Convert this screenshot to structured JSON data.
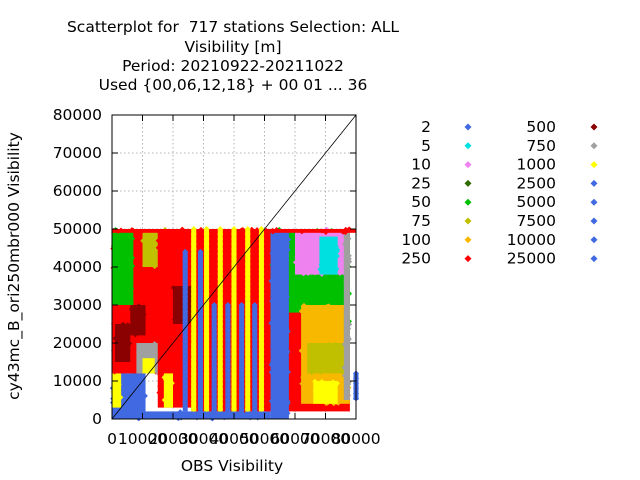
{
  "chart_data": {
    "type": "scatter",
    "title_lines": [
      "Scatterplot for  717 stations Selection: ALL",
      "Visibility [m]",
      "Period: 20210922-20211022",
      "Used {00,06,12,18} + 00 01 ... 36"
    ],
    "xlabel": "OBS Visibility",
    "ylabel": "cy43mc_B_ori250mbr000 Visibility",
    "xlim": [
      0,
      80000
    ],
    "ylim": [
      0,
      80000
    ],
    "x_ticks": [
      "0",
      "10000",
      "20000",
      "30000",
      "40000",
      "50000",
      "60000",
      "70000",
      "80000"
    ],
    "y_ticks": [
      "0",
      "10000",
      "20000",
      "30000",
      "40000",
      "50000",
      "60000",
      "70000",
      "80000"
    ],
    "grid": true,
    "diagonal_line": true,
    "legend_position": "right",
    "legend": [
      {
        "label": "2",
        "color": "#4169e1"
      },
      {
        "label": "5",
        "color": "#00e0e0"
      },
      {
        "label": "10",
        "color": "#ee82ee"
      },
      {
        "label": "25",
        "color": "#2e6b00"
      },
      {
        "label": "50",
        "color": "#00c000"
      },
      {
        "label": "75",
        "color": "#c0c000"
      },
      {
        "label": "100",
        "color": "#f8b800"
      },
      {
        "label": "250",
        "color": "#ff0000"
      },
      {
        "label": "500",
        "color": "#8b0000"
      },
      {
        "label": "750",
        "color": "#a0a0a0"
      },
      {
        "label": "1000",
        "color": "#ffff00"
      },
      {
        "label": "2500",
        "color": "#4169e1"
      },
      {
        "label": "5000",
        "color": "#4169e1"
      },
      {
        "label": "7500",
        "color": "#4169e1"
      },
      {
        "label": "10000",
        "color": "#4169e1"
      },
      {
        "label": "25000",
        "color": "#4169e1"
      }
    ],
    "regions": [
      {
        "color": "#4169e1",
        "x": [
          0,
          52000
        ],
        "y": [
          0,
          2000
        ]
      },
      {
        "color": "#4169e1",
        "x": [
          0,
          11000
        ],
        "y": [
          0,
          12000
        ]
      },
      {
        "color": "#ffff00",
        "x": [
          0,
          3000
        ],
        "y": [
          3000,
          12000
        ]
      },
      {
        "color": "#ff0000",
        "x": [
          0,
          20000
        ],
        "y": [
          12000,
          50000
        ]
      },
      {
        "color": "#00c000",
        "x": [
          0,
          7000
        ],
        "y": [
          30000,
          50000
        ]
      },
      {
        "color": "#8b0000",
        "x": [
          1000,
          6000
        ],
        "y": [
          15000,
          25000
        ]
      },
      {
        "color": "#8b0000",
        "x": [
          6000,
          11000
        ],
        "y": [
          22000,
          30000
        ]
      },
      {
        "color": "#a0a0a0",
        "x": [
          8000,
          16000
        ],
        "y": [
          12000,
          20000
        ]
      },
      {
        "color": "#ffff00",
        "x": [
          10000,
          14000
        ],
        "y": [
          12000,
          16000
        ]
      },
      {
        "color": "#c0c000",
        "x": [
          10000,
          18000
        ],
        "y": [
          40000,
          50000
        ]
      },
      {
        "color": "#ff0000",
        "x": [
          15000,
          26000
        ],
        "y": [
          3000,
          50000
        ]
      },
      {
        "color": "#ffff00",
        "x": [
          17000,
          20000
        ],
        "y": [
          3000,
          12000
        ]
      },
      {
        "color": "#8b0000",
        "x": [
          20000,
          26000
        ],
        "y": [
          25000,
          35000
        ]
      },
      {
        "color": "#ff0000",
        "x": [
          26000,
          40000
        ],
        "y": [
          2000,
          50000
        ]
      },
      {
        "color": "#ff0000",
        "x": [
          40000,
          52000
        ],
        "y": [
          2000,
          50000
        ]
      },
      {
        "color": "#00c000",
        "x": [
          52000,
          78000
        ],
        "y": [
          20000,
          50000
        ]
      },
      {
        "color": "#ff0000",
        "x": [
          52000,
          78000
        ],
        "y": [
          2000,
          20000
        ]
      },
      {
        "color": "#ff0000",
        "x": [
          58000,
          70000
        ],
        "y": [
          10000,
          28000
        ]
      },
      {
        "color": "#f8b800",
        "x": [
          62000,
          78000
        ],
        "y": [
          4000,
          30000
        ]
      },
      {
        "color": "#ffff00",
        "x": [
          66000,
          74000
        ],
        "y": [
          4000,
          10000
        ]
      },
      {
        "color": "#c0c000",
        "x": [
          64000,
          76000
        ],
        "y": [
          12000,
          20000
        ]
      },
      {
        "color": "#ee82ee",
        "x": [
          60000,
          77000
        ],
        "y": [
          38000,
          50000
        ]
      },
      {
        "color": "#00e0e0",
        "x": [
          68000,
          74000
        ],
        "y": [
          38000,
          48000
        ]
      },
      {
        "color": "#a0a0a0",
        "x": [
          76000,
          78000
        ],
        "y": [
          5000,
          50000
        ]
      },
      {
        "color": "#4169e1",
        "x": [
          52000,
          58000
        ],
        "y": [
          0,
          50000
        ]
      },
      {
        "color": "#ff0000",
        "x": [
          0,
          80000
        ],
        "y": [
          49000,
          50000
        ]
      }
    ],
    "vertical_bands": [
      {
        "color": "#4169e1",
        "x": 24000,
        "y": [
          2000,
          44000
        ]
      },
      {
        "color": "#4169e1",
        "x": 29000,
        "y": [
          0,
          44000
        ]
      },
      {
        "color": "#4169e1",
        "x": 33500,
        "y": [
          0,
          30000
        ]
      },
      {
        "color": "#4169e1",
        "x": 38000,
        "y": [
          0,
          30000
        ]
      },
      {
        "color": "#4169e1",
        "x": 42500,
        "y": [
          0,
          30000
        ]
      },
      {
        "color": "#4169e1",
        "x": 46800,
        "y": [
          0,
          30000
        ]
      },
      {
        "color": "#ffff00",
        "x": 26800,
        "y": [
          2000,
          50000
        ]
      },
      {
        "color": "#ffff00",
        "x": 31000,
        "y": [
          2000,
          50000
        ]
      },
      {
        "color": "#ffff00",
        "x": 35500,
        "y": [
          2000,
          50000
        ]
      },
      {
        "color": "#ffff00",
        "x": 40000,
        "y": [
          2000,
          50000
        ]
      },
      {
        "color": "#ffff00",
        "x": 44500,
        "y": [
          2000,
          50000
        ]
      },
      {
        "color": "#ffff00",
        "x": 49000,
        "y": [
          2000,
          50000
        ]
      },
      {
        "color": "#4169e1",
        "x": 80000,
        "y": [
          5000,
          12000
        ]
      }
    ]
  }
}
